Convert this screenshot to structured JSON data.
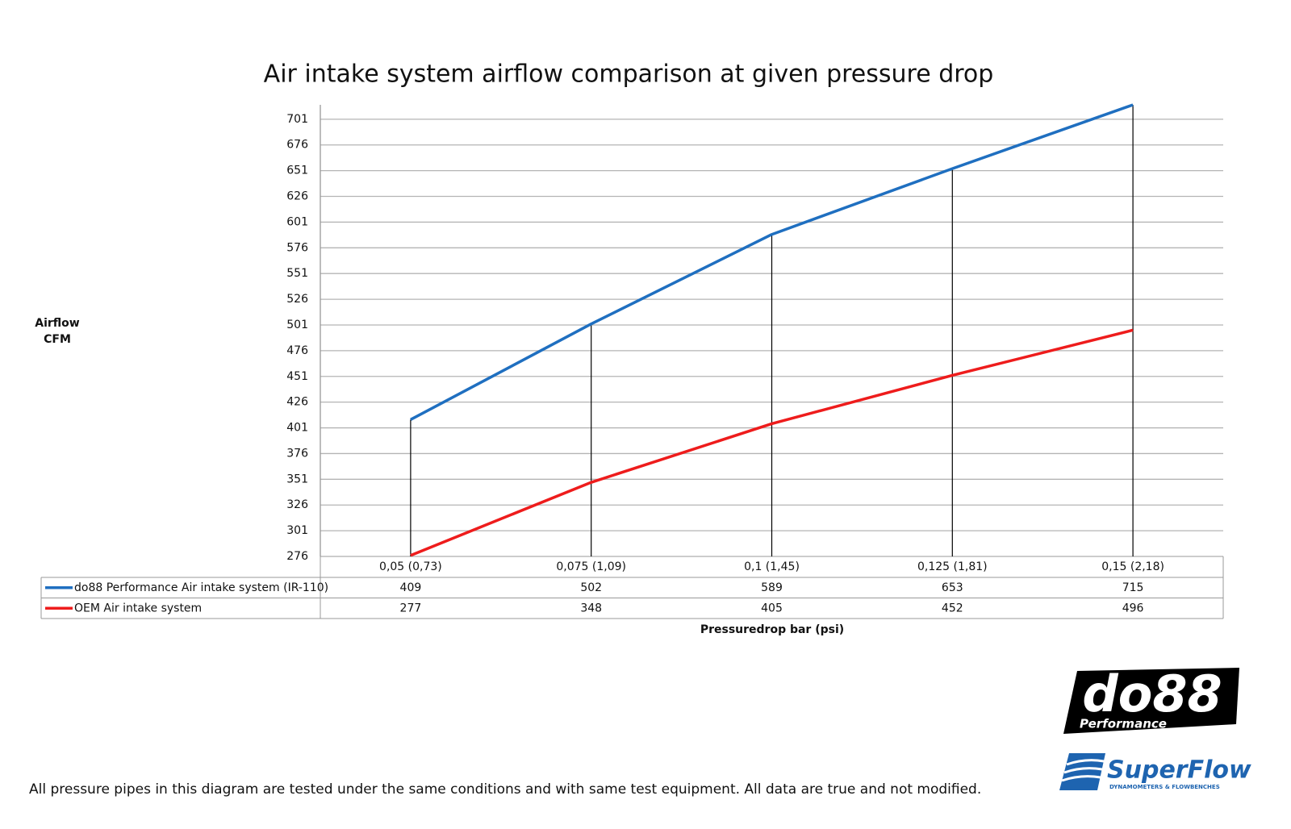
{
  "chart_data": {
    "type": "line",
    "title": "Air intake system airflow comparison at given pressure drop",
    "ylabel": [
      "Airflow",
      "CFM"
    ],
    "xlabel": "Pressuredrop bar (psi)",
    "categories": [
      "0,05 (0,73)",
      "0,075 (1,09)",
      "0,1 (1,45)",
      "0,125 (1,81)",
      "0,15 (2,18)"
    ],
    "series": [
      {
        "name": "do88 Performance Air intake system (IR-110)",
        "color": "#1f6fc0",
        "values": [
          409,
          502,
          589,
          653,
          715
        ]
      },
      {
        "name": "OEM Air intake system",
        "color": "#ee1c1c",
        "values": [
          277,
          348,
          405,
          452,
          496
        ]
      }
    ],
    "ylim": [
      276,
      715
    ],
    "yticks": [
      276,
      301,
      326,
      351,
      376,
      401,
      426,
      451,
      476,
      501,
      526,
      551,
      576,
      601,
      626,
      651,
      676,
      701
    ],
    "grid": true,
    "drop_lines": true,
    "data_table": true
  },
  "footnote": "All pressure pipes in this diagram are tested under the same conditions and with same test equipment. All data are true and not modified.",
  "logos": {
    "do88": "do88",
    "do88_sub": "Performance",
    "superflow": "SuperFlow",
    "superflow_sub": "DYNAMOMETERS & FLOWBENCHES"
  }
}
